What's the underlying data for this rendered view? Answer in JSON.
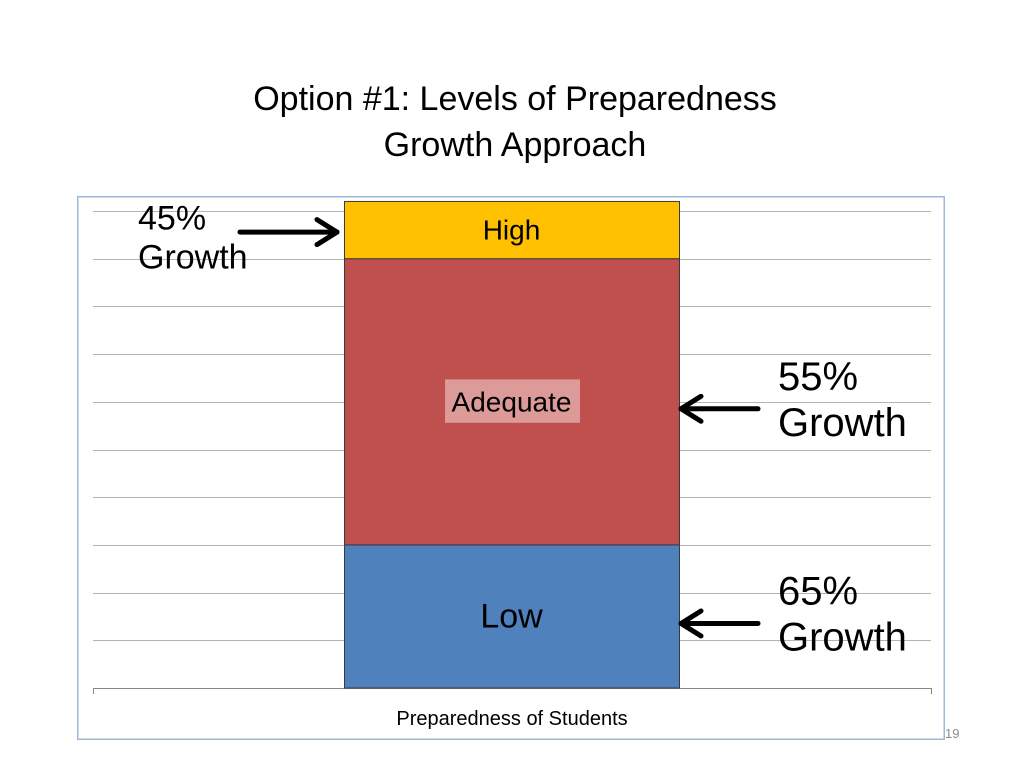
{
  "slide": {
    "title_line1": "Option #1: Levels of Preparedness",
    "title_line2": "Growth Approach",
    "slide_number": "19"
  },
  "chart_data": {
    "type": "bar",
    "stacked": true,
    "categories": [
      ""
    ],
    "series": [
      {
        "name": "Low",
        "values": [
          3
        ],
        "color": "#4f81bd"
      },
      {
        "name": "Adequate",
        "values": [
          6
        ],
        "color": "#c0504d"
      },
      {
        "name": "High",
        "values": [
          1.2
        ],
        "color": "#ffc000"
      }
    ],
    "segment_labels": [
      "Low",
      "Adequate",
      "High"
    ],
    "xlabel": "Preparedness of Students",
    "ylabel": "",
    "ylim": [
      0,
      10
    ],
    "grid": true,
    "legend": "none",
    "annotations": [
      {
        "target": "High",
        "line1": "45%",
        "line2": "Growth"
      },
      {
        "target": "Adequate",
        "line1": "55%",
        "line2": "Growth"
      },
      {
        "target": "Low",
        "line1": "65%",
        "line2": "Growth"
      }
    ]
  }
}
